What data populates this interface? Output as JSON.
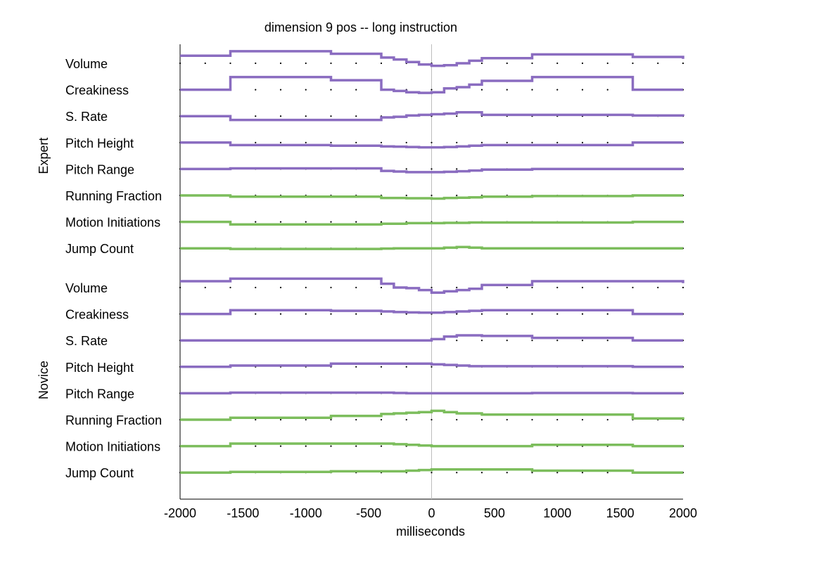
{
  "chart_data": {
    "type": "line",
    "title": "dimension 9 pos -- long instruction",
    "xlabel": "milliseconds",
    "xlim": [
      -2000,
      2000
    ],
    "xticks": [
      -2000,
      -1500,
      -1000,
      -500,
      0,
      500,
      1000,
      1500,
      2000
    ],
    "x": [
      -2000,
      -1600,
      -800,
      -400,
      -300,
      -200,
      -100,
      0,
      100,
      200,
      300,
      400,
      800,
      1600,
      2000
    ],
    "groups": [
      {
        "label": "Expert",
        "rows": [
          {
            "name": "Volume",
            "color": "#8a6cc0",
            "values": [
              0.6,
              0.95,
              0.75,
              0.45,
              0.3,
              0.1,
              -0.1,
              -0.2,
              -0.15,
              0.0,
              0.2,
              0.4,
              0.7,
              0.5,
              0.35
            ]
          },
          {
            "name": "Creakiness",
            "color": "#8a6cc0",
            "values": [
              0.0,
              1.0,
              0.75,
              0.0,
              -0.1,
              -0.2,
              -0.25,
              -0.2,
              0.1,
              0.2,
              0.4,
              0.7,
              1.0,
              0.0,
              0.0
            ]
          },
          {
            "name": "S. Rate",
            "color": "#8a6cc0",
            "values": [
              0.0,
              -0.3,
              -0.3,
              -0.1,
              -0.05,
              0.05,
              0.1,
              0.15,
              0.2,
              0.3,
              0.3,
              0.1,
              0.1,
              0.05,
              0.0
            ]
          },
          {
            "name": "Pitch Height",
            "color": "#8a6cc0",
            "values": [
              0.0,
              -0.2,
              -0.25,
              -0.3,
              -0.32,
              -0.35,
              -0.38,
              -0.38,
              -0.35,
              -0.3,
              -0.25,
              -0.2,
              -0.2,
              0.0,
              0.0
            ]
          },
          {
            "name": "Pitch Range",
            "color": "#8a6cc0",
            "values": [
              0.0,
              0.05,
              0.05,
              -0.15,
              -0.2,
              -0.25,
              -0.25,
              -0.25,
              -0.22,
              -0.18,
              -0.12,
              -0.05,
              0.0,
              0.0,
              0.0
            ]
          },
          {
            "name": "Running Fraction",
            "color": "#7cbd5c",
            "values": [
              0.0,
              -0.1,
              -0.1,
              -0.2,
              -0.2,
              -0.22,
              -0.22,
              -0.25,
              -0.2,
              -0.18,
              -0.15,
              -0.1,
              -0.05,
              0.0,
              0.0
            ]
          },
          {
            "name": "Motion Initiations",
            "color": "#7cbd5c",
            "values": [
              0.0,
              -0.2,
              -0.2,
              -0.15,
              -0.15,
              -0.1,
              -0.1,
              -0.1,
              -0.08,
              -0.08,
              -0.05,
              -0.05,
              -0.05,
              0.0,
              0.0
            ]
          },
          {
            "name": "Jump Count",
            "color": "#7cbd5c",
            "values": [
              0.0,
              -0.05,
              -0.05,
              -0.02,
              0.0,
              0.0,
              0.0,
              0.0,
              0.05,
              0.1,
              0.05,
              0.0,
              0.0,
              0.0,
              0.0
            ]
          }
        ]
      },
      {
        "label": "Novice",
        "rows": [
          {
            "name": "Volume",
            "color": "#8a6cc0",
            "values": [
              0.5,
              0.7,
              0.7,
              0.3,
              0.0,
              -0.05,
              -0.2,
              -0.4,
              -0.3,
              -0.2,
              -0.1,
              0.2,
              0.5,
              0.5,
              0.35
            ]
          },
          {
            "name": "Creakiness",
            "color": "#8a6cc0",
            "values": [
              0.0,
              0.3,
              0.25,
              0.2,
              0.15,
              0.12,
              0.1,
              0.1,
              0.15,
              0.2,
              0.25,
              0.3,
              0.3,
              0.0,
              0.0
            ]
          },
          {
            "name": "S. Rate",
            "color": "#8a6cc0",
            "values": [
              0.0,
              0.0,
              0.0,
              0.0,
              0.0,
              0.0,
              0.0,
              0.1,
              0.3,
              0.4,
              0.4,
              0.35,
              0.2,
              0.0,
              0.0
            ]
          },
          {
            "name": "Pitch Height",
            "color": "#8a6cc0",
            "values": [
              0.0,
              0.1,
              0.25,
              0.25,
              0.25,
              0.25,
              0.25,
              0.2,
              0.15,
              0.1,
              0.05,
              0.05,
              0.05,
              0.0,
              0.0
            ]
          },
          {
            "name": "Pitch Range",
            "color": "#8a6cc0",
            "values": [
              0.0,
              0.05,
              0.05,
              0.05,
              0.02,
              0.0,
              0.0,
              0.0,
              0.0,
              0.0,
              0.0,
              0.0,
              0.02,
              0.0,
              0.0
            ]
          },
          {
            "name": "Running Fraction",
            "color": "#7cbd5c",
            "values": [
              0.0,
              0.15,
              0.3,
              0.45,
              0.5,
              0.55,
              0.6,
              0.7,
              0.6,
              0.5,
              0.5,
              0.4,
              0.4,
              0.1,
              0.0
            ]
          },
          {
            "name": "Motion Initiations",
            "color": "#7cbd5c",
            "values": [
              0.0,
              0.2,
              0.2,
              0.2,
              0.15,
              0.1,
              0.05,
              0.0,
              0.0,
              0.0,
              0.0,
              0.0,
              0.1,
              0.0,
              0.0
            ]
          },
          {
            "name": "Jump Count",
            "color": "#7cbd5c",
            "values": [
              0.0,
              0.05,
              0.1,
              0.1,
              0.1,
              0.15,
              0.2,
              0.25,
              0.25,
              0.25,
              0.25,
              0.25,
              0.15,
              0.0,
              0.0
            ]
          }
        ]
      }
    ]
  }
}
